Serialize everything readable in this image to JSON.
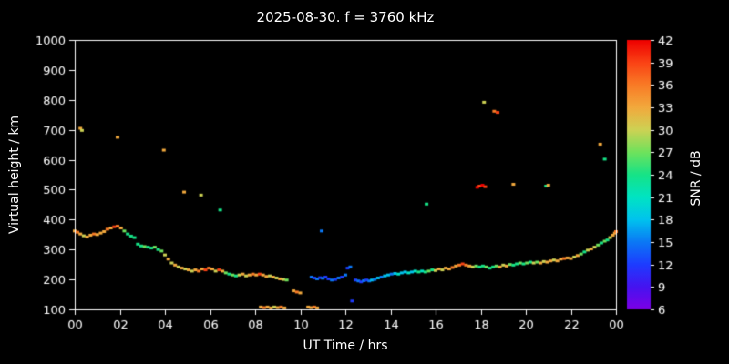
{
  "colors": {
    "background": "#000000",
    "foreground": "#ffffff"
  },
  "chart_data": {
    "type": "scatter",
    "title": "2025-08-30. f = 3760 kHz",
    "xlabel": "UT Time / hrs",
    "ylabel": "Virtual height / km",
    "colorbar_label": "SNR / dB",
    "xlim": [
      0,
      24
    ],
    "ylim": [
      100,
      1000
    ],
    "clim": [
      6,
      42
    ],
    "xticks": [
      {
        "v": 0,
        "label": "00"
      },
      {
        "v": 2,
        "label": "02"
      },
      {
        "v": 4,
        "label": "04"
      },
      {
        "v": 6,
        "label": "06"
      },
      {
        "v": 8,
        "label": "08"
      },
      {
        "v": 10,
        "label": "10"
      },
      {
        "v": 12,
        "label": "12"
      },
      {
        "v": 14,
        "label": "14"
      },
      {
        "v": 16,
        "label": "16"
      },
      {
        "v": 18,
        "label": "18"
      },
      {
        "v": 20,
        "label": "20"
      },
      {
        "v": 22,
        "label": "22"
      },
      {
        "v": 24,
        "label": "00"
      }
    ],
    "yticks": [
      100,
      200,
      300,
      400,
      500,
      600,
      700,
      800,
      900,
      1000
    ],
    "cticks": [
      6,
      9,
      12,
      15,
      18,
      21,
      24,
      27,
      30,
      33,
      36,
      39,
      42
    ],
    "colormap": [
      [
        6,
        "#7d00e6"
      ],
      [
        9,
        "#4613f0"
      ],
      [
        12,
        "#1e3cff"
      ],
      [
        15,
        "#0b78f5"
      ],
      [
        18,
        "#00c3ee"
      ],
      [
        21,
        "#00e4c3"
      ],
      [
        24,
        "#16e387"
      ],
      [
        27,
        "#6fe25c"
      ],
      [
        30,
        "#cdd254"
      ],
      [
        33,
        "#f2a93d"
      ],
      [
        36,
        "#f97b26"
      ],
      [
        39,
        "#fa4215"
      ],
      [
        42,
        "#ee0000"
      ]
    ],
    "points": [
      [
        0.0,
        362,
        33
      ],
      [
        0.12,
        358,
        36
      ],
      [
        0.25,
        352,
        33
      ],
      [
        0.4,
        346,
        30
      ],
      [
        0.55,
        342,
        33
      ],
      [
        0.7,
        348,
        33
      ],
      [
        0.85,
        352,
        36
      ],
      [
        1.0,
        350,
        33
      ],
      [
        1.15,
        355,
        33
      ],
      [
        1.3,
        360,
        33
      ],
      [
        1.45,
        368,
        36
      ],
      [
        1.6,
        372,
        33
      ],
      [
        1.75,
        376,
        39
      ],
      [
        1.9,
        378,
        36
      ],
      [
        2.05,
        372,
        33
      ],
      [
        2.2,
        362,
        27
      ],
      [
        2.35,
        352,
        24
      ],
      [
        2.5,
        345,
        24
      ],
      [
        2.65,
        340,
        24
      ],
      [
        2.8,
        318,
        24
      ],
      [
        2.95,
        312,
        24
      ],
      [
        3.1,
        310,
        27
      ],
      [
        3.25,
        308,
        24
      ],
      [
        3.4,
        305,
        24
      ],
      [
        3.55,
        308,
        27
      ],
      [
        3.7,
        300,
        24
      ],
      [
        3.85,
        295,
        27
      ],
      [
        4.0,
        282,
        30
      ],
      [
        4.15,
        268,
        33
      ],
      [
        4.3,
        255,
        30
      ],
      [
        4.45,
        248,
        33
      ],
      [
        4.6,
        242,
        30
      ],
      [
        4.75,
        238,
        33
      ],
      [
        4.9,
        235,
        30
      ],
      [
        5.05,
        232,
        33
      ],
      [
        5.2,
        228,
        30
      ],
      [
        5.35,
        232,
        33
      ],
      [
        5.5,
        228,
        36
      ],
      [
        5.65,
        235,
        33
      ],
      [
        5.8,
        232,
        39
      ],
      [
        5.95,
        238,
        36
      ],
      [
        6.1,
        235,
        33
      ],
      [
        6.25,
        228,
        30
      ],
      [
        6.4,
        232,
        39
      ],
      [
        6.55,
        228,
        33
      ],
      [
        6.7,
        222,
        27
      ],
      [
        6.85,
        218,
        24
      ],
      [
        7.0,
        215,
        27
      ],
      [
        7.15,
        212,
        24
      ],
      [
        7.3,
        215,
        30
      ],
      [
        7.45,
        218,
        33
      ],
      [
        7.6,
        212,
        30
      ],
      [
        7.75,
        215,
        33
      ],
      [
        7.9,
        218,
        36
      ],
      [
        8.05,
        215,
        33
      ],
      [
        8.2,
        218,
        39
      ],
      [
        8.35,
        215,
        33
      ],
      [
        8.5,
        210,
        33
      ],
      [
        8.65,
        212,
        30
      ],
      [
        8.8,
        208,
        33
      ],
      [
        8.95,
        205,
        30
      ],
      [
        9.1,
        202,
        33
      ],
      [
        9.25,
        200,
        30
      ],
      [
        9.4,
        198,
        27
      ],
      [
        9.7,
        162,
        33
      ],
      [
        9.85,
        158,
        36
      ],
      [
        10.0,
        155,
        33
      ],
      [
        10.5,
        208,
        15
      ],
      [
        10.62,
        205,
        12
      ],
      [
        10.75,
        202,
        15
      ],
      [
        10.88,
        206,
        12
      ],
      [
        11.0,
        204,
        15
      ],
      [
        11.12,
        208,
        12
      ],
      [
        11.25,
        202,
        12
      ],
      [
        11.4,
        198,
        15
      ],
      [
        11.55,
        200,
        12
      ],
      [
        11.7,
        205,
        15
      ],
      [
        11.85,
        208,
        12
      ],
      [
        12.0,
        215,
        15
      ],
      [
        12.1,
        238,
        12
      ],
      [
        12.22,
        242,
        15
      ],
      [
        12.45,
        198,
        12
      ],
      [
        12.58,
        195,
        15
      ],
      [
        12.7,
        192,
        12
      ],
      [
        12.82,
        196,
        15
      ],
      [
        12.94,
        198,
        12
      ],
      [
        13.06,
        195,
        15
      ],
      [
        13.18,
        198,
        18
      ],
      [
        13.3,
        200,
        15
      ],
      [
        13.45,
        205,
        18
      ],
      [
        13.6,
        208,
        15
      ],
      [
        13.75,
        212,
        18
      ],
      [
        13.9,
        215,
        18
      ],
      [
        14.05,
        218,
        15
      ],
      [
        14.2,
        220,
        18
      ],
      [
        14.35,
        218,
        21
      ],
      [
        14.5,
        222,
        18
      ],
      [
        14.65,
        225,
        18
      ],
      [
        14.8,
        222,
        21
      ],
      [
        14.95,
        225,
        18
      ],
      [
        15.1,
        228,
        21
      ],
      [
        15.25,
        225,
        24
      ],
      [
        15.4,
        228,
        21
      ],
      [
        15.55,
        225,
        24
      ],
      [
        15.7,
        228,
        27
      ],
      [
        15.85,
        232,
        24
      ],
      [
        16.0,
        230,
        30
      ],
      [
        16.15,
        235,
        33
      ],
      [
        16.3,
        232,
        30
      ],
      [
        16.45,
        238,
        33
      ],
      [
        16.6,
        235,
        33
      ],
      [
        16.75,
        240,
        36
      ],
      [
        16.9,
        245,
        33
      ],
      [
        17.05,
        248,
        36
      ],
      [
        17.2,
        252,
        39
      ],
      [
        17.35,
        248,
        36
      ],
      [
        17.5,
        245,
        33
      ],
      [
        17.65,
        242,
        30
      ],
      [
        17.8,
        245,
        27
      ],
      [
        17.95,
        242,
        24
      ],
      [
        18.1,
        245,
        24
      ],
      [
        18.25,
        242,
        27
      ],
      [
        18.4,
        238,
        24
      ],
      [
        18.55,
        242,
        24
      ],
      [
        18.7,
        245,
        27
      ],
      [
        18.85,
        242,
        33
      ],
      [
        19.0,
        248,
        30
      ],
      [
        19.15,
        245,
        33
      ],
      [
        19.3,
        250,
        27
      ],
      [
        19.45,
        248,
        24
      ],
      [
        19.6,
        252,
        24
      ],
      [
        19.75,
        255,
        27
      ],
      [
        19.9,
        252,
        24
      ],
      [
        20.05,
        255,
        27
      ],
      [
        20.2,
        258,
        24
      ],
      [
        20.35,
        255,
        30
      ],
      [
        20.5,
        258,
        27
      ],
      [
        20.65,
        255,
        33
      ],
      [
        20.8,
        260,
        30
      ],
      [
        20.95,
        258,
        33
      ],
      [
        21.1,
        262,
        33
      ],
      [
        21.25,
        265,
        30
      ],
      [
        21.4,
        262,
        33
      ],
      [
        21.55,
        268,
        33
      ],
      [
        21.7,
        270,
        36
      ],
      [
        21.85,
        272,
        33
      ],
      [
        22.0,
        270,
        33
      ],
      [
        22.15,
        275,
        30
      ],
      [
        22.3,
        280,
        33
      ],
      [
        22.45,
        285,
        27
      ],
      [
        22.6,
        292,
        24
      ],
      [
        22.75,
        298,
        30
      ],
      [
        22.9,
        302,
        33
      ],
      [
        23.05,
        308,
        30
      ],
      [
        23.2,
        315,
        27
      ],
      [
        23.35,
        322,
        24
      ],
      [
        23.5,
        328,
        27
      ],
      [
        23.62,
        332,
        24
      ],
      [
        23.74,
        340,
        30
      ],
      [
        23.86,
        348,
        33
      ],
      [
        23.95,
        355,
        33
      ],
      [
        24.0,
        360,
        36
      ],
      [
        8.25,
        108,
        33
      ],
      [
        8.4,
        106,
        36
      ],
      [
        8.55,
        108,
        33
      ],
      [
        8.7,
        105,
        33
      ],
      [
        8.85,
        108,
        30
      ],
      [
        9.0,
        106,
        33
      ],
      [
        9.15,
        108,
        36
      ],
      [
        9.3,
        105,
        33
      ],
      [
        10.35,
        108,
        33
      ],
      [
        10.48,
        106,
        33
      ],
      [
        10.62,
        108,
        36
      ],
      [
        10.75,
        105,
        33
      ],
      [
        12.3,
        128,
        12
      ],
      [
        0.25,
        705,
        33
      ],
      [
        0.32,
        698,
        30
      ],
      [
        1.9,
        675,
        33
      ],
      [
        3.95,
        632,
        33
      ],
      [
        4.85,
        492,
        33
      ],
      [
        5.6,
        482,
        30
      ],
      [
        6.45,
        432,
        24
      ],
      [
        10.95,
        362,
        15
      ],
      [
        15.6,
        452,
        24
      ],
      [
        17.85,
        508,
        42
      ],
      [
        17.95,
        512,
        39
      ],
      [
        18.08,
        515,
        42
      ],
      [
        18.2,
        510,
        39
      ],
      [
        18.15,
        792,
        30
      ],
      [
        18.6,
        762,
        36
      ],
      [
        18.75,
        758,
        39
      ],
      [
        19.45,
        518,
        33
      ],
      [
        20.9,
        512,
        24
      ],
      [
        21.0,
        515,
        33
      ],
      [
        23.3,
        652,
        33
      ],
      [
        23.5,
        602,
        24
      ]
    ]
  }
}
